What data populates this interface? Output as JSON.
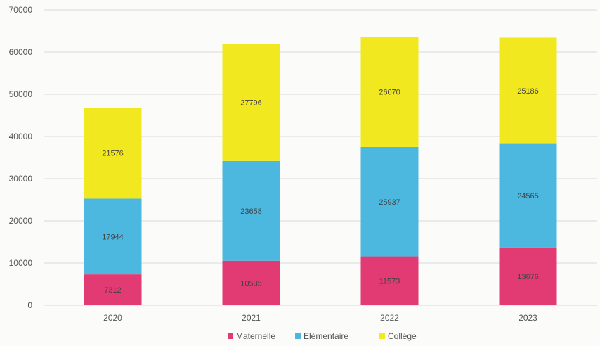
{
  "chart_data": {
    "type": "bar",
    "stacked": true,
    "categories": [
      "2020",
      "2021",
      "2022",
      "2023"
    ],
    "series": [
      {
        "name": "Maternelle",
        "color": "#e23a72",
        "values": [
          7312,
          10535,
          11573,
          13676
        ]
      },
      {
        "name": "Elémentaire",
        "color": "#4cb7df",
        "values": [
          17944,
          23658,
          25937,
          24565
        ]
      },
      {
        "name": "Collège",
        "color": "#f2e81f",
        "values": [
          21576,
          27796,
          26070,
          25186
        ]
      }
    ],
    "ylim": [
      0,
      70000
    ],
    "yticks": [
      "0",
      "10000",
      "20000",
      "30000",
      "40000",
      "50000",
      "60000",
      "70000"
    ],
    "ytick_values": [
      0,
      10000,
      20000,
      30000,
      40000,
      50000,
      60000,
      70000
    ],
    "grid": true,
    "legend": "bottom",
    "gridline_color": "#d9d9d9",
    "text_color": "#555555"
  }
}
